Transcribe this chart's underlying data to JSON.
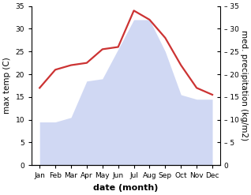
{
  "months": [
    "Jan",
    "Feb",
    "Mar",
    "Apr",
    "May",
    "Jun",
    "Jul",
    "Aug",
    "Sep",
    "Oct",
    "Nov",
    "Dec"
  ],
  "max_temp": [
    9.5,
    9.5,
    10.5,
    18.5,
    19.0,
    25.5,
    32.0,
    32.0,
    25.0,
    15.5,
    14.5,
    14.5
  ],
  "med_precip": [
    17.0,
    21.0,
    22.0,
    22.5,
    25.5,
    26.0,
    34.0,
    32.0,
    28.0,
    22.0,
    17.0,
    15.5
  ],
  "fill_color": "#b8c4ee",
  "fill_alpha": 0.65,
  "line_color": "#cc3333",
  "line_width": 1.6,
  "ylabel_left": "max temp (C)",
  "ylabel_right": "med. precipitation (kg/m2)",
  "xlabel": "date (month)",
  "ylim": [
    0,
    35
  ],
  "yticks": [
    0,
    5,
    10,
    15,
    20,
    25,
    30,
    35
  ],
  "bg_color": "#ffffff",
  "axis_fontsize": 7.5,
  "tick_fontsize": 6.5,
  "xlabel_fontsize": 8,
  "ylabel_fontsize": 7.5
}
